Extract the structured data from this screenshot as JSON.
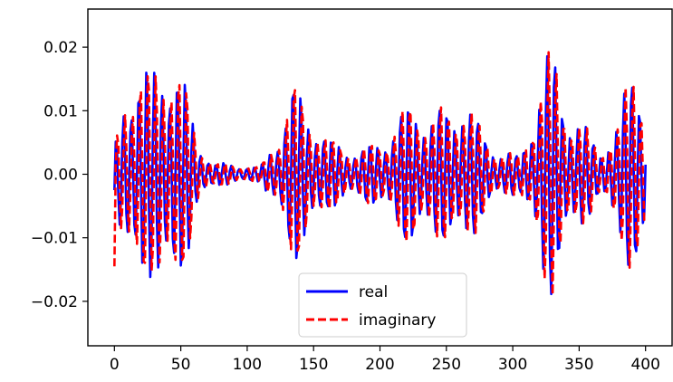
{
  "chart_data": {
    "type": "line",
    "title": "",
    "xlabel": "",
    "ylabel": "",
    "xlim": [
      -20,
      420
    ],
    "ylim": [
      -0.027,
      0.026
    ],
    "x_ticks": [
      0,
      50,
      100,
      150,
      200,
      250,
      300,
      350,
      400
    ],
    "x_tick_labels": [
      "0",
      "50",
      "100",
      "150",
      "200",
      "250",
      "300",
      "350",
      "400"
    ],
    "y_ticks": [
      -0.02,
      -0.01,
      0.0,
      0.01,
      0.02
    ],
    "y_tick_labels": [
      "−0.02",
      "−0.01",
      "0.00",
      "0.01",
      "0.02"
    ],
    "grid": false,
    "legend_position": "lower-center",
    "x_sampling": {
      "start": 0,
      "end": 400,
      "step": 1
    },
    "signal_model": {
      "carrier_period": 5.8,
      "envelope_points": [
        [
          0,
          0.004
        ],
        [
          5,
          0.01
        ],
        [
          10,
          0.016
        ],
        [
          18,
          0.021
        ],
        [
          28,
          0.016
        ],
        [
          38,
          0.02
        ],
        [
          45,
          0.023
        ],
        [
          52,
          0.016
        ],
        [
          62,
          0.006
        ],
        [
          75,
          0.002
        ],
        [
          95,
          0.0015
        ],
        [
          110,
          0.0012
        ],
        [
          125,
          0.008
        ],
        [
          135,
          0.015
        ],
        [
          145,
          0.012
        ],
        [
          160,
          0.006
        ],
        [
          185,
          0.004
        ],
        [
          200,
          0.006
        ],
        [
          210,
          0.008
        ],
        [
          225,
          0.013
        ],
        [
          240,
          0.01
        ],
        [
          255,
          0.012
        ],
        [
          262,
          0.014
        ],
        [
          275,
          0.008
        ],
        [
          290,
          0.004
        ],
        [
          305,
          0.003
        ],
        [
          318,
          0.013
        ],
        [
          325,
          0.019
        ],
        [
          332,
          0.02
        ],
        [
          345,
          0.01
        ],
        [
          365,
          0.005
        ],
        [
          380,
          0.008
        ],
        [
          388,
          0.018
        ],
        [
          393,
          0.024
        ],
        [
          398,
          0.016
        ],
        [
          400,
          0.014
        ]
      ],
      "real_start_value": -0.0025,
      "imaginary_start_value": -0.0145
    },
    "series": [
      {
        "name": "real",
        "color": "#0000ff",
        "style": "solid"
      },
      {
        "name": "imaginary",
        "color": "#ff0000",
        "style": "dashed"
      }
    ]
  }
}
